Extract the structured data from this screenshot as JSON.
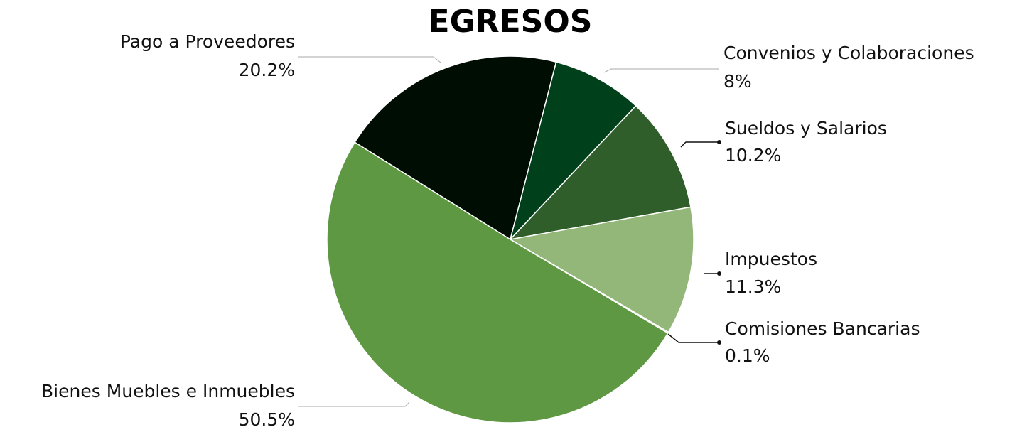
{
  "chart_data": {
    "type": "pie",
    "title": "EGRESOS",
    "categories": [
      "Pago a Proveedores",
      "Convenios y Colaboraciones",
      "Sueldos y Salarios",
      "Impuestos",
      "Comisiones Bancarias",
      "Bienes Muebles e Inmuebles"
    ],
    "values": [
      20.2,
      8,
      10.2,
      11.3,
      0.1,
      50.5
    ],
    "value_labels": [
      "20.2%",
      "8%",
      "10.2%",
      "11.3%",
      "0.1%",
      "50.5%"
    ],
    "colors": [
      "#000d03",
      "#00401a",
      "#2f5e2a",
      "#93b679",
      "#2a4a2a",
      "#5f9843"
    ]
  }
}
